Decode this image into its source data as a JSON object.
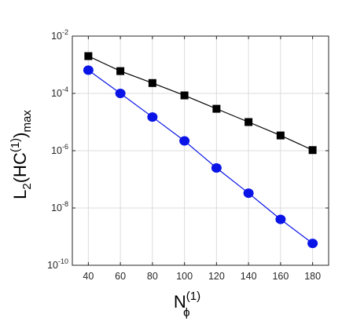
{
  "chart_data": {
    "type": "line",
    "x": [
      40,
      60,
      80,
      100,
      120,
      140,
      160,
      180
    ],
    "x_ticks": [
      40,
      60,
      80,
      100,
      120,
      140,
      160,
      180
    ],
    "xlim": [
      30,
      190
    ],
    "ylim_log10": [
      -10,
      -2
    ],
    "y_scale": "log",
    "y_ticks": [
      {
        "exp": -2,
        "base": "10",
        "power": "-2"
      },
      {
        "exp": -4,
        "base": "10",
        "power": "-4"
      },
      {
        "exp": -6,
        "base": "10",
        "power": "-6"
      },
      {
        "exp": -8,
        "base": "10",
        "power": "-8"
      },
      {
        "exp": -10,
        "base": "10",
        "power": "-10"
      }
    ],
    "grid": true,
    "ylabel": {
      "main": "L",
      "sub1": "2",
      "mid": "(HC",
      "sup": "(1)",
      "close": ")",
      "sub2": "max"
    },
    "xlabel": {
      "main": "N",
      "sup": "(1)",
      "sub": "ϕ"
    },
    "series": [
      {
        "marker": "square",
        "color": "#000000",
        "values": [
          0.002,
          0.0006,
          0.00023,
          8.5e-05,
          2.9e-05,
          1e-05,
          3.4e-06,
          1.05e-06
        ]
      },
      {
        "marker": "circle",
        "color": "#0a14e6",
        "values": [
          0.00065,
          0.0001,
          1.5e-05,
          2.2e-06,
          2.5e-07,
          3.3e-08,
          4e-09,
          5.8e-10
        ]
      }
    ]
  }
}
